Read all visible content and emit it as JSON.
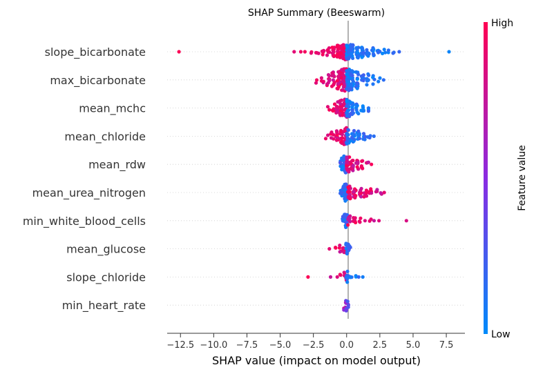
{
  "chart_data": {
    "type": "scatter",
    "subtype": "shap-beeswarm",
    "title": "SHAP Summary (Beeswarm)",
    "xlabel": "SHAP value (impact on model output)",
    "ylabel": "",
    "xlim": [
      -13.5,
      8.9
    ],
    "x_ticks": [
      -12.5,
      -10.0,
      -7.5,
      -5.0,
      -2.5,
      0.0,
      2.5,
      5.0,
      7.5
    ],
    "x_tick_labels": [
      "−12.5",
      "−10.0",
      "−7.5",
      "−5.0",
      "−2.5",
      "0.0",
      "2.5",
      "5.0",
      "7.5"
    ],
    "grid": false,
    "colorbar": {
      "title": "Feature value",
      "high_label": "High",
      "low_label": "Low",
      "high_color": "#ff0052",
      "mid_color": "#8a2be2",
      "low_color": "#008bfb"
    },
    "features": [
      {
        "name": "slope_bicarbonate",
        "spread": 0.28,
        "neg": {
          "color_range": [
            0.85,
            1.0
          ],
          "points": [
            [
              -12.5,
              1
            ],
            [
              -3.9,
              1
            ],
            [
              -3.5,
              1
            ],
            [
              -3.1,
              1
            ],
            [
              -2.7,
              2
            ],
            [
              -2.2,
              3
            ],
            [
              -1.8,
              5
            ],
            [
              -1.4,
              8
            ],
            [
              -1.0,
              12
            ],
            [
              -0.6,
              18
            ],
            [
              -0.3,
              24
            ],
            [
              -0.1,
              28
            ]
          ]
        },
        "pos": {
          "color_range": [
            0.0,
            0.2
          ],
          "points": [
            [
              0.1,
              26
            ],
            [
              0.4,
              22
            ],
            [
              0.8,
              18
            ],
            [
              1.2,
              14
            ],
            [
              1.6,
              10
            ],
            [
              2.0,
              7
            ],
            [
              2.4,
              5
            ],
            [
              2.8,
              3
            ],
            [
              3.2,
              2
            ],
            [
              3.6,
              2
            ],
            [
              3.9,
              1
            ],
            [
              7.8,
              1
            ]
          ]
        }
      },
      {
        "name": "max_bicarbonate",
        "spread": 0.42,
        "neg": {
          "color_range": [
            0.75,
            1.0
          ],
          "points": [
            [
              -2.2,
              2
            ],
            [
              -1.8,
              4
            ],
            [
              -1.4,
              8
            ],
            [
              -1.0,
              12
            ],
            [
              -0.6,
              18
            ],
            [
              -0.3,
              24
            ],
            [
              -0.1,
              28
            ]
          ]
        },
        "pos": {
          "color_range": [
            0.0,
            0.25
          ],
          "points": [
            [
              0.1,
              26
            ],
            [
              0.4,
              20
            ],
            [
              0.8,
              15
            ],
            [
              1.2,
              10
            ],
            [
              1.6,
              7
            ],
            [
              2.0,
              4
            ],
            [
              2.4,
              2
            ],
            [
              2.7,
              1
            ]
          ]
        }
      },
      {
        "name": "mean_mchc",
        "spread": 0.32,
        "neg": {
          "color_range": [
            0.75,
            1.0
          ],
          "points": [
            [
              -1.4,
              2
            ],
            [
              -1.0,
              6
            ],
            [
              -0.7,
              12
            ],
            [
              -0.4,
              18
            ],
            [
              -0.1,
              24
            ]
          ]
        },
        "pos": {
          "color_range": [
            0.0,
            0.25
          ],
          "points": [
            [
              0.1,
              22
            ],
            [
              0.4,
              16
            ],
            [
              0.8,
              10
            ],
            [
              1.2,
              6
            ],
            [
              1.6,
              3
            ]
          ]
        }
      },
      {
        "name": "mean_chloride",
        "spread": 0.3,
        "neg": {
          "color_range": [
            0.75,
            1.0
          ],
          "points": [
            [
              -1.5,
              2
            ],
            [
              -1.1,
              5
            ],
            [
              -0.7,
              10
            ],
            [
              -0.4,
              16
            ],
            [
              -0.1,
              22
            ]
          ]
        },
        "pos": {
          "color_range": [
            0.0,
            0.25
          ],
          "points": [
            [
              0.1,
              20
            ],
            [
              0.5,
              14
            ],
            [
              0.9,
              9
            ],
            [
              1.3,
              5
            ],
            [
              1.7,
              3
            ],
            [
              2.1,
              1
            ]
          ]
        }
      },
      {
        "name": "mean_rdw",
        "spread": 0.3,
        "neg": {
          "color_range": [
            0.0,
            0.3
          ],
          "points": [
            [
              -0.5,
              4
            ],
            [
              -0.3,
              14
            ],
            [
              -0.1,
              24
            ]
          ]
        },
        "pos": {
          "color_range": [
            0.7,
            1.0
          ],
          "points": [
            [
              0.1,
              20
            ],
            [
              0.4,
              14
            ],
            [
              0.8,
              9
            ],
            [
              1.2,
              6
            ],
            [
              1.6,
              3
            ],
            [
              1.8,
              1
            ]
          ]
        }
      },
      {
        "name": "mean_urea_nitrogen",
        "spread": 0.3,
        "neg": {
          "color_range": [
            0.0,
            0.3
          ],
          "points": [
            [
              -0.4,
              4
            ],
            [
              -0.2,
              16
            ],
            [
              -0.05,
              26
            ]
          ]
        },
        "pos": {
          "color_range": [
            0.7,
            1.0
          ],
          "points": [
            [
              0.2,
              18
            ],
            [
              0.6,
              12
            ],
            [
              1.0,
              9
            ],
            [
              1.4,
              7
            ],
            [
              1.8,
              5
            ],
            [
              2.2,
              3
            ],
            [
              2.6,
              2
            ],
            [
              2.9,
              1
            ]
          ]
        }
      },
      {
        "name": "min_white_blood_cells",
        "spread": 0.25,
        "neg": {
          "color_range": [
            0.0,
            0.3
          ],
          "points": [
            [
              -0.2,
              8
            ],
            [
              -0.05,
              20
            ]
          ]
        },
        "pos": {
          "color_range": [
            0.7,
            1.0
          ],
          "points": [
            [
              0.2,
              10
            ],
            [
              0.6,
              5
            ],
            [
              1.0,
              3
            ],
            [
              1.4,
              1
            ],
            [
              1.8,
              2
            ],
            [
              2.0,
              1
            ],
            [
              2.5,
              1
            ],
            [
              4.5,
              1
            ]
          ]
        }
      },
      {
        "name": "mean_glucose",
        "spread": 0.2,
        "neg": {
          "color_range": [
            0.75,
            1.0
          ],
          "points": [
            [
              -1.2,
              1
            ],
            [
              -0.9,
              2
            ],
            [
              -0.5,
              4
            ],
            [
              -0.2,
              6
            ],
            [
              -0.05,
              8
            ]
          ]
        },
        "pos": {
          "color_range": [
            0.0,
            0.25
          ],
          "points": [
            [
              0.05,
              10
            ],
            [
              0.2,
              4
            ]
          ]
        }
      },
      {
        "name": "slope_chloride",
        "spread": 0.2,
        "neg": {
          "color_range": [
            0.75,
            1.0
          ],
          "points": [
            [
              -3.0,
              1
            ],
            [
              -1.2,
              1
            ],
            [
              -0.8,
              1
            ],
            [
              -0.4,
              2
            ],
            [
              -0.1,
              6
            ]
          ]
        },
        "pos": {
          "color_range": [
            0.0,
            0.25
          ],
          "points": [
            [
              0.05,
              8
            ],
            [
              0.3,
              3
            ],
            [
              0.6,
              2
            ],
            [
              0.9,
              1
            ],
            [
              1.3,
              1
            ]
          ]
        }
      },
      {
        "name": "min_heart_rate",
        "spread": 0.2,
        "neg": {
          "color_range": [
            0.4,
            0.9
          ],
          "points": [
            [
              -0.1,
              8
            ]
          ]
        },
        "pos": {
          "color_range": [
            0.2,
            0.7
          ],
          "points": [
            [
              0.05,
              10
            ]
          ]
        }
      }
    ]
  }
}
